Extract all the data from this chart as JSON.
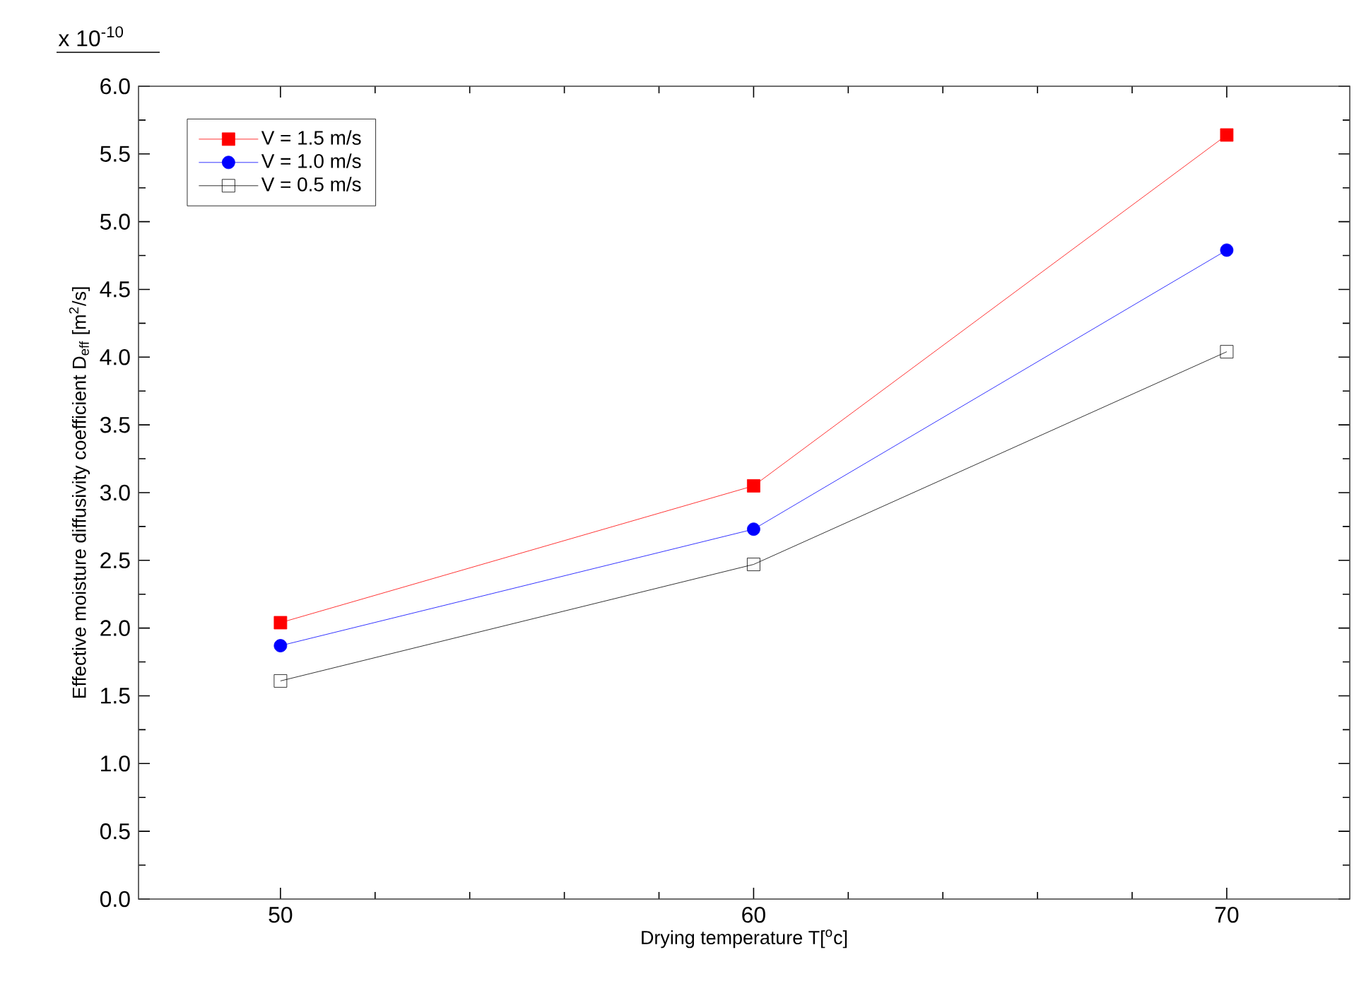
{
  "chart_data": {
    "type": "line",
    "xlabel": "Drying temperature T[$^{o}$c]",
    "ylabel": "Effective moisture diffusivity coefficient D$_{eff}$ [m$^{2}$/s]",
    "annotations": [
      "x 10$^{-10}$"
    ],
    "x": [
      50,
      60,
      70
    ],
    "series": [
      {
        "name": "V = 1.5 m/s",
        "color": "#ff0000",
        "marker": "square",
        "values": [
          2.04,
          3.05,
          5.64
        ]
      },
      {
        "name": "V = 1.0 m/s",
        "color": "#0000ff",
        "marker": "circle",
        "values": [
          1.87,
          2.73,
          4.79
        ]
      },
      {
        "name": "V = 0.5 m/s",
        "color": "#000000",
        "marker": "square",
        "values": [
          1.61,
          2.47,
          4.04
        ]
      }
    ],
    "xlim": [
      47,
      72.6
    ],
    "ylim": [
      0,
      6
    ],
    "xticks": [
      50,
      60,
      70
    ],
    "yticks": [
      {
        "value": 0,
        "label": "0.0"
      },
      {
        "value": 0.5,
        "label": "0.5"
      },
      {
        "value": 1,
        "label": "1.0"
      },
      {
        "value": 1.5,
        "label": "1.5"
      },
      {
        "value": 2,
        "label": "2.0"
      },
      {
        "value": 2.5,
        "label": "2.5"
      },
      {
        "value": 3,
        "label": "3.0"
      },
      {
        "value": 3.5,
        "label": "3.5"
      },
      {
        "value": 4,
        "label": "4.0"
      },
      {
        "value": 4.5,
        "label": "4.5"
      },
      {
        "value": 5,
        "label": "5.0"
      },
      {
        "value": 5.5,
        "label": "5.5"
      },
      {
        "value": 6,
        "label": "6.0"
      }
    ],
    "grid": false,
    "legend": "top left",
    "line_style": "solid"
  }
}
